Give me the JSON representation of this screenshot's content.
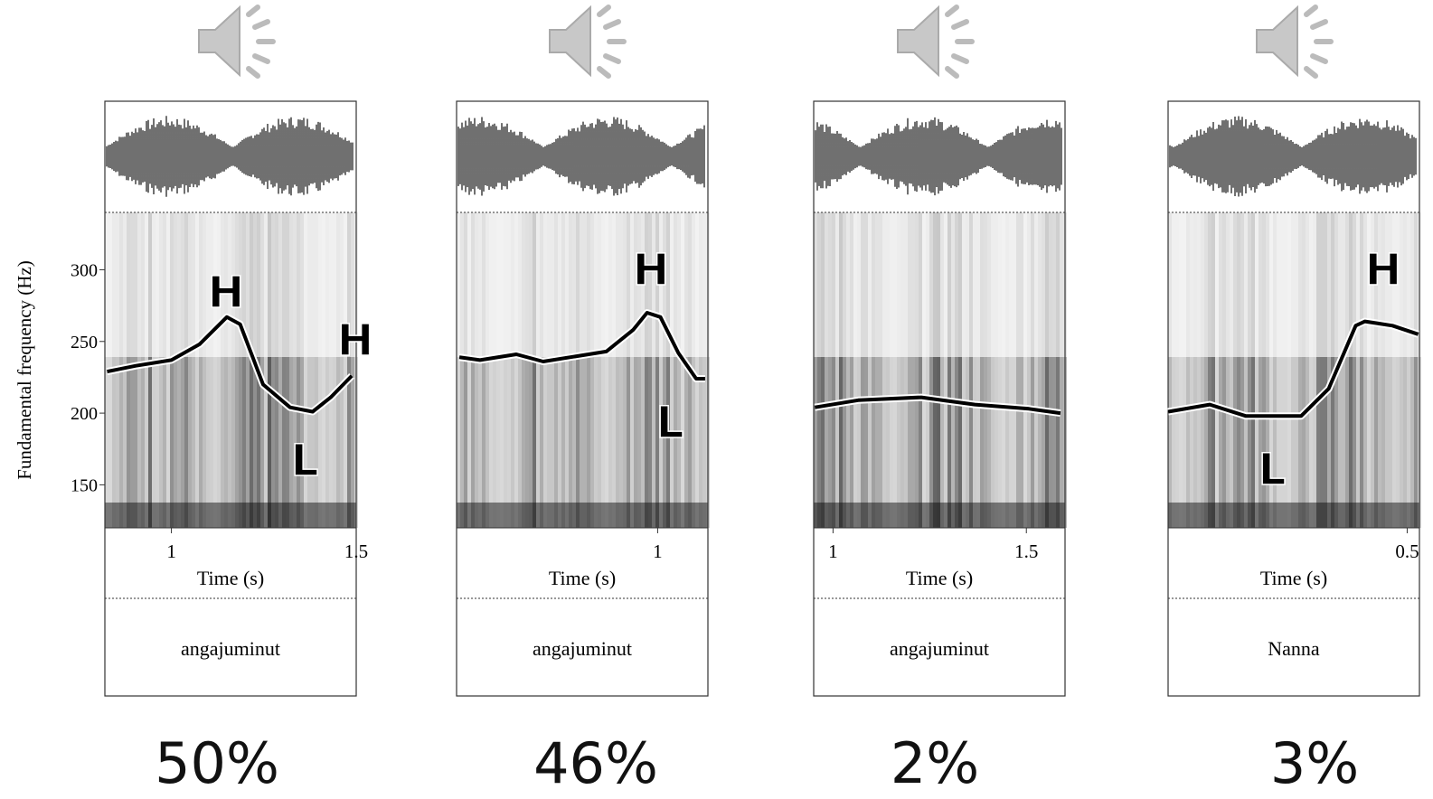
{
  "chart_data": [
    {
      "type": "line",
      "ylabel": "Fundamental frequency (Hz)",
      "xlabel": "Time (s)",
      "word": "angajuminut",
      "xlim": [
        0.82,
        1.5
      ],
      "xticks": [
        1,
        1.5
      ],
      "ylim": [
        120,
        340
      ],
      "yticks": [
        150,
        200,
        250,
        300
      ],
      "x": [
        0.826,
        0.904,
        1.0,
        1.076,
        1.15,
        1.186,
        1.248,
        1.321,
        1.382,
        1.431,
        1.488
      ],
      "values": [
        229,
        233,
        237,
        248,
        267,
        262,
        220,
        204,
        201,
        211,
        226
      ],
      "tones": [
        "H",
        "H",
        "L"
      ],
      "color": "#000000",
      "value": 50,
      "value_label": "50%"
    },
    {
      "type": "line",
      "xlabel": "Time (s)",
      "word": "angajuminut",
      "xlim": [
        0.64,
        1.09
      ],
      "xticks": [
        1
      ],
      "ylim": [
        120,
        340
      ],
      "x": [
        0.645,
        0.682,
        0.747,
        0.795,
        0.86,
        0.908,
        0.956,
        0.981,
        1.005,
        1.037,
        1.069,
        1.085
      ],
      "values": [
        239,
        237,
        241,
        236,
        240,
        243,
        258,
        270,
        267,
        242,
        224,
        224
      ],
      "tones": [
        "H",
        "L"
      ],
      "color": "#000000",
      "value": 46,
      "value_label": "46%"
    },
    {
      "type": "line",
      "xlabel": "Time (s)",
      "word": "angajuminut",
      "xlim": [
        0.95,
        1.6
      ],
      "xticks": [
        1,
        1.5
      ],
      "ylim": [
        120,
        340
      ],
      "x": [
        0.953,
        1.065,
        1.228,
        1.367,
        1.507,
        1.588
      ],
      "values": [
        204,
        209,
        211,
        206,
        203,
        200
      ],
      "tones": [],
      "color": "#000000",
      "value": 2,
      "value_label": "2%"
    },
    {
      "type": "line",
      "xlabel": "Time (s)",
      "word": "Nanna",
      "xlim": [
        0.11,
        0.52
      ],
      "xticks": [
        0.5
      ],
      "ylim": [
        120,
        340
      ],
      "x": [
        0.11,
        0.178,
        0.237,
        0.327,
        0.372,
        0.416,
        0.431,
        0.476,
        0.518
      ],
      "values": [
        201,
        206,
        198,
        198,
        217,
        261,
        264,
        261,
        255
      ],
      "tones": [
        "H",
        "L"
      ],
      "color": "#000000",
      "value": 3,
      "value_label": "3%"
    }
  ]
}
